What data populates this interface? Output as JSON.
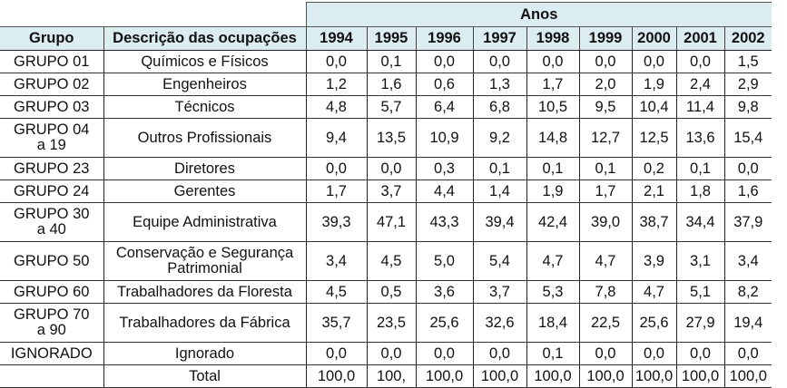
{
  "table": {
    "super_header": "Anos",
    "columns": [
      "Grupo",
      "Descrição das ocupações",
      "1994",
      "1995",
      "1996",
      "1997",
      "1998",
      "1999",
      "2000",
      "2001",
      "2002"
    ],
    "rows": [
      {
        "grupo": "GRUPO 01",
        "descricao": "Químicos e Físicos",
        "values": [
          "0,0",
          "0,1",
          "0,0",
          "0,0",
          "0,0",
          "0,0",
          "0,0",
          "0,0",
          "1,5"
        ]
      },
      {
        "grupo": "GRUPO 02",
        "descricao": "Engenheiros",
        "values": [
          "1,2",
          "1,6",
          "0,6",
          "1,3",
          "1,7",
          "2,0",
          "1,9",
          "2,4",
          "2,9"
        ]
      },
      {
        "grupo": "GRUPO 03",
        "descricao": "Técnicos",
        "values": [
          "4,8",
          "5,7",
          "6,4",
          "6,8",
          "10,5",
          "9,5",
          "10,4",
          "11,4",
          "9,8"
        ]
      },
      {
        "grupo": "GRUPO 04 a 19",
        "descricao": "Outros Profissionais",
        "values": [
          "9,4",
          "13,5",
          "10,9",
          "9,2",
          "14,8",
          "12,7",
          "12,5",
          "13,6",
          "15,4"
        ]
      },
      {
        "grupo": "GRUPO 23",
        "descricao": "Diretores",
        "values": [
          "0,0",
          "0,0",
          "0,3",
          "0,1",
          "0,1",
          "0,1",
          "0,2",
          "0,1",
          "0,0"
        ]
      },
      {
        "grupo": "GRUPO 24",
        "descricao": "Gerentes",
        "values": [
          "1,7",
          "3,7",
          "4,4",
          "1,4",
          "1,9",
          "1,7",
          "2,1",
          "1,8",
          "1,6"
        ]
      },
      {
        "grupo": "GRUPO 30 a 40",
        "descricao": "Equipe Administrativa",
        "values": [
          "39,3",
          "47,1",
          "43,3",
          "39,4",
          "42,4",
          "39,0",
          "38,7",
          "34,4",
          "37,9"
        ]
      },
      {
        "grupo": "GRUPO 50",
        "descricao": "Conservação e Segurança Patrimonial",
        "values": [
          "3,4",
          "4,5",
          "5,0",
          "5,4",
          "4,7",
          "4,7",
          "3,9",
          "3,1",
          "3,4"
        ]
      },
      {
        "grupo": "GRUPO 60",
        "descricao": "Trabalhadores da Floresta",
        "values": [
          "4,5",
          "0,5",
          "3,6",
          "3,7",
          "5,3",
          "7,8",
          "4,7",
          "5,1",
          "8,2"
        ]
      },
      {
        "grupo": "GRUPO 70 a 90",
        "descricao": "Trabalhadores da Fábrica",
        "values": [
          "35,7",
          "23,5",
          "25,6",
          "32,6",
          "18,4",
          "22,5",
          "25,6",
          "27,9",
          "19,4"
        ]
      },
      {
        "grupo": "IGNORADO",
        "descricao": "Ignorado",
        "values": [
          "0,0",
          "0,0",
          "0,0",
          "0,0",
          "0,1",
          "0,0",
          "0,0",
          "0,0",
          "0,0"
        ]
      },
      {
        "grupo": "",
        "descricao": "Total",
        "values": [
          "100,0",
          "100,",
          "100,0",
          "100,0",
          "100,0",
          "100,0",
          "100,0",
          "100,0",
          "100,0"
        ]
      }
    ]
  }
}
